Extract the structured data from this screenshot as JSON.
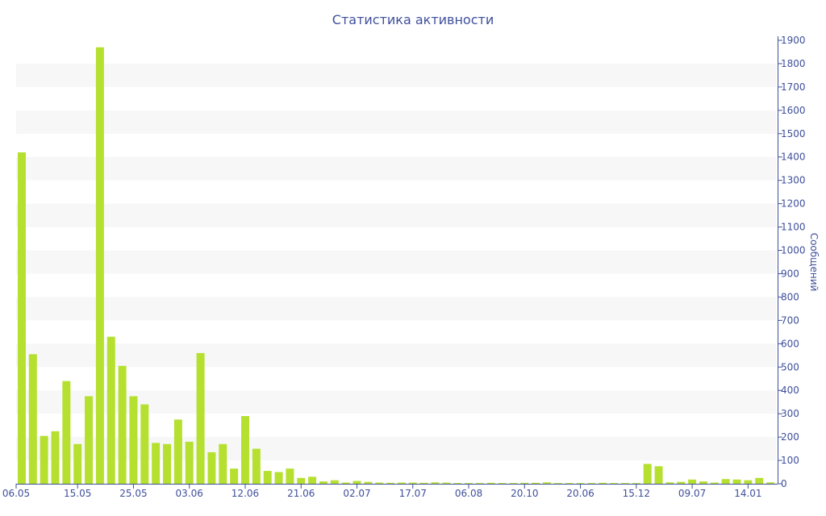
{
  "chart_data": {
    "type": "bar",
    "title": "Статистика активности",
    "xlabel": "",
    "ylabel": "Сообщений",
    "ylim": [
      0,
      1900
    ],
    "yticks": [
      0,
      100,
      200,
      300,
      400,
      500,
      600,
      700,
      800,
      900,
      1000,
      1100,
      1200,
      1300,
      1400,
      1500,
      1600,
      1700,
      1800,
      1900
    ],
    "x_tick_labels": [
      {
        "label": "06.05",
        "index": 0
      },
      {
        "label": "15.05",
        "index": 5
      },
      {
        "label": "25.05",
        "index": 10
      },
      {
        "label": "03.06",
        "index": 15
      },
      {
        "label": "12.06",
        "index": 20
      },
      {
        "label": "21.06",
        "index": 25
      },
      {
        "label": "02.07",
        "index": 30
      },
      {
        "label": "17.07",
        "index": 35
      },
      {
        "label": "06.08",
        "index": 40
      },
      {
        "label": "20.10",
        "index": 45
      },
      {
        "label": "20.06",
        "index": 50
      },
      {
        "label": "15.12",
        "index": 55
      },
      {
        "label": "09.07",
        "index": 60
      },
      {
        "label": "14.01",
        "index": 65
      }
    ],
    "values": [
      1420,
      555,
      205,
      225,
      440,
      170,
      375,
      1870,
      630,
      505,
      375,
      340,
      175,
      170,
      275,
      180,
      560,
      135,
      170,
      65,
      290,
      150,
      55,
      50,
      65,
      25,
      30,
      10,
      15,
      5,
      12,
      8,
      5,
      4,
      5,
      5,
      4,
      6,
      5,
      3,
      3,
      3,
      4,
      3,
      3,
      4,
      4,
      6,
      3,
      3,
      3,
      3,
      4,
      3,
      3,
      3,
      85,
      75,
      6,
      8,
      18,
      10,
      5,
      20,
      18,
      15,
      25,
      6
    ],
    "bar_color": "#b5e02f",
    "grid": "alternating horizontal bands",
    "band_color": "#f7f7f7",
    "axis_color": "#3e4f9b",
    "y_axis_side": "right"
  }
}
